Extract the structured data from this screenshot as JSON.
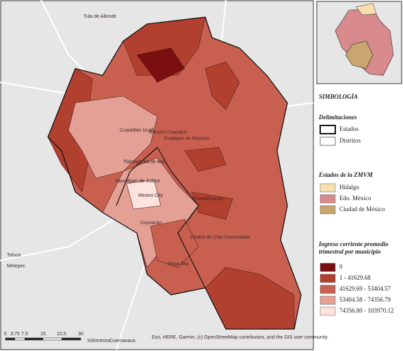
{
  "map": {
    "place_labels": [
      "Tula de Allende",
      "Cuautitlán Izcalli",
      "Rancho Coacalco",
      "Ecatepec de Morelos",
      "Tlalnepantla de Baz",
      "Naucalpan de Juárez",
      "Mexico City",
      "Coyoacán",
      "Chimalhuacán",
      "Chalco de Díaz Covarrubias",
      "Milpa Alta",
      "Toluca",
      "Metepec",
      "Cuernavaca"
    ],
    "scale_bar": {
      "ticks": [
        "0",
        "3.75",
        "7.5",
        "15",
        "22.5",
        "30"
      ],
      "unit": "Kilómetros"
    },
    "attribution": "Esri, HERE, Garmin, (c) OpenStreetMap contributors, and the GIS user community"
  },
  "legend": {
    "title": "SIMBOLOGÍA",
    "delimitaciones": {
      "title": "Delimitaciones",
      "items": [
        "Estados",
        "Distritos"
      ]
    },
    "estados": {
      "title": "Estados de la ZMVM",
      "items": [
        {
          "label": "Hidalgo",
          "color": "#f7dfb0"
        },
        {
          "label": "Edo. México",
          "color": "#d98a8c"
        },
        {
          "label": "Ciudad de México",
          "color": "#c9a670"
        }
      ]
    },
    "ingreso": {
      "title": "Ingreso corriente promedio trimestral por municipio",
      "items": [
        {
          "label": "0",
          "color": "#7b0f0f"
        },
        {
          "label": "1 - 41629.68",
          "color": "#b2402f"
        },
        {
          "label": "41629.69 - 53404.57",
          "color": "#c9604f"
        },
        {
          "label": "53404.58 - 74356.79",
          "color": "#e4a095"
        },
        {
          "label": "74356.80 - 103970.12",
          "color": "#fde3de"
        }
      ]
    }
  }
}
